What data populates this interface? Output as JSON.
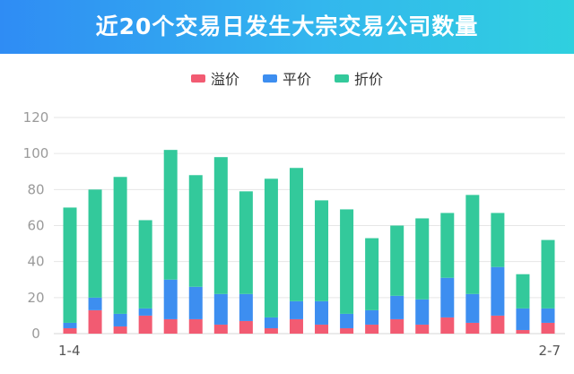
{
  "header": {
    "title": "近20个交易日发生大宗交易公司数量"
  },
  "colors": {
    "premium": "#f25b72",
    "par": "#3d8ef0",
    "discount": "#33c99b"
  },
  "chart_data": {
    "type": "bar",
    "stacked": true,
    "categories": [
      "1-4",
      "",
      "",
      "",
      "",
      "",
      "",
      "",
      "",
      "",
      "",
      "",
      "",
      "",
      "",
      "",
      "",
      "",
      "",
      "2-7"
    ],
    "series": [
      {
        "name": "溢价",
        "values": [
          3,
          13,
          4,
          10,
          8,
          8,
          5,
          7,
          3,
          8,
          5,
          3,
          5,
          8,
          5,
          9,
          6,
          10,
          2,
          6
        ]
      },
      {
        "name": "平价",
        "values": [
          3,
          7,
          7,
          4,
          22,
          18,
          17,
          15,
          6,
          10,
          13,
          8,
          8,
          13,
          14,
          22,
          16,
          27,
          12,
          8
        ]
      },
      {
        "name": "折价",
        "values": [
          64,
          60,
          76,
          49,
          72,
          62,
          76,
          57,
          77,
          74,
          56,
          58,
          40,
          39,
          45,
          36,
          55,
          30,
          19,
          38
        ]
      }
    ],
    "yticks": [
      0,
      20,
      40,
      60,
      80,
      100,
      120
    ],
    "ylim": [
      0,
      120
    ],
    "grid": true,
    "legend_position": "top-center"
  }
}
